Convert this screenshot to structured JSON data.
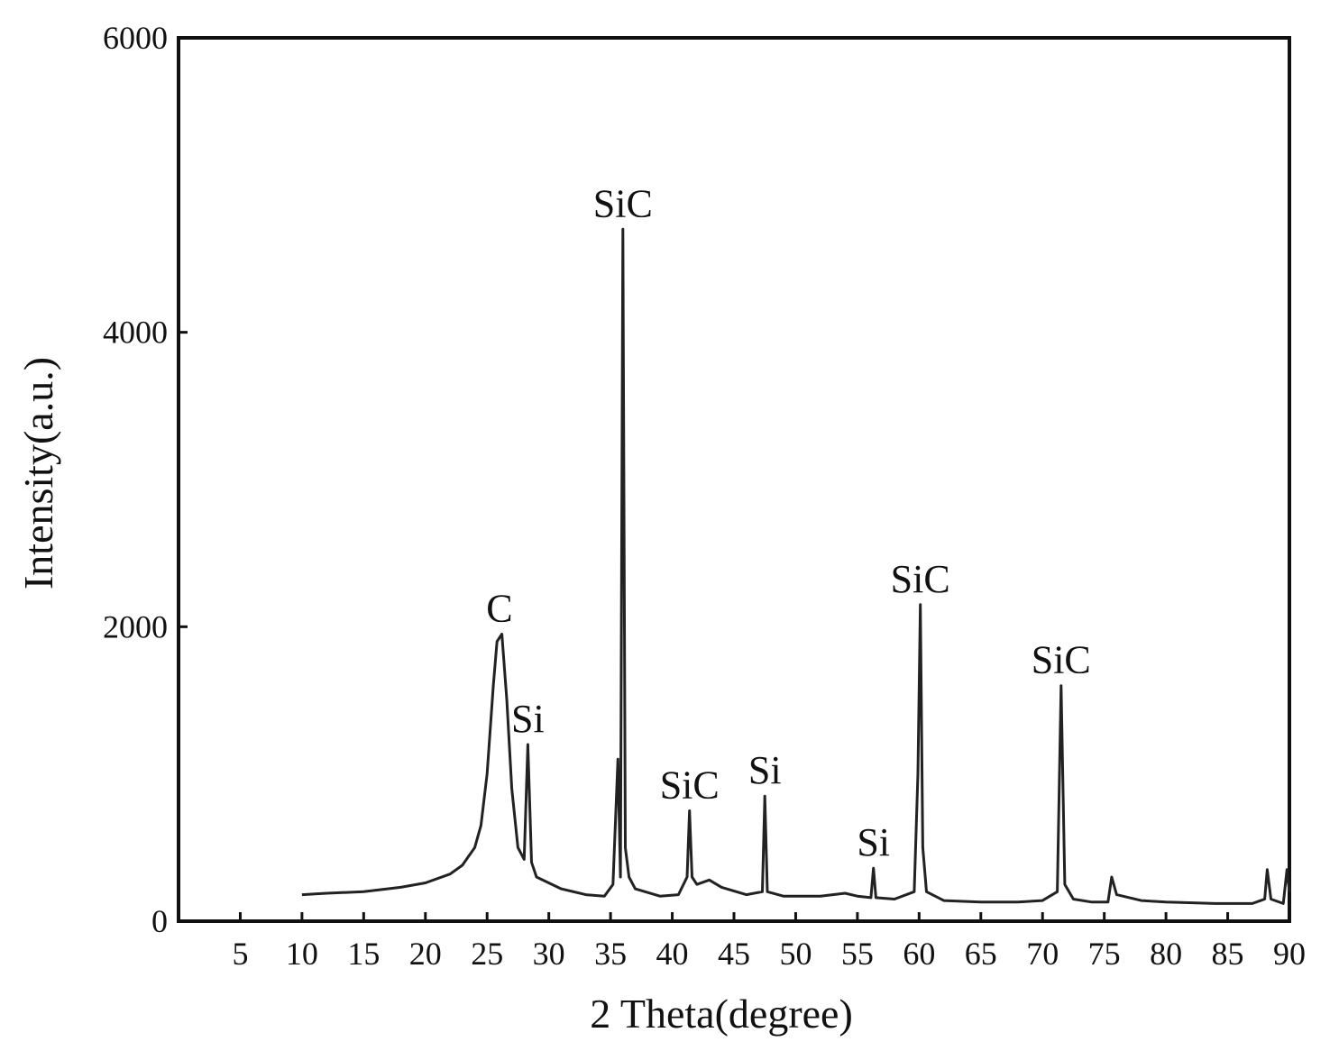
{
  "chart_data": {
    "type": "line",
    "x_label": "2 Theta(degree)",
    "y_label": "Intensity(a.u.)",
    "color": "#222222",
    "xlim": [
      0,
      90
    ],
    "ylim": [
      0,
      6000
    ],
    "xticks": [
      5,
      10,
      15,
      20,
      25,
      30,
      35,
      40,
      45,
      50,
      55,
      60,
      65,
      70,
      75,
      80,
      85,
      90
    ],
    "yticks": [
      0,
      2000,
      4000,
      6000
    ],
    "grid": false,
    "x": [
      10,
      12,
      15,
      18,
      20,
      22,
      23,
      24,
      24.5,
      25,
      25.5,
      25.8,
      26.2,
      26.6,
      27,
      27.5,
      28,
      28.3,
      28.6,
      29,
      31,
      33,
      34.5,
      35.2,
      35.6,
      35.8,
      36,
      36.2,
      36.5,
      37,
      39,
      40.5,
      41.2,
      41.4,
      41.6,
      42,
      43,
      44,
      46,
      47.3,
      47.5,
      47.7,
      49,
      52,
      54,
      55,
      56.1,
      56.3,
      56.5,
      58,
      59.6,
      59.9,
      60.1,
      60.3,
      60.6,
      62,
      65,
      68,
      70,
      71.2,
      71.5,
      71.8,
      72.5,
      74,
      75.3,
      75.6,
      76,
      78,
      80,
      84,
      87,
      88,
      88.2,
      88.5,
      89.5,
      89.8,
      90
    ],
    "values": [
      180,
      190,
      200,
      230,
      260,
      320,
      380,
      500,
      650,
      1000,
      1600,
      1900,
      1950,
      1500,
      900,
      500,
      420,
      1200,
      400,
      300,
      220,
      180,
      170,
      250,
      1100,
      300,
      4700,
      500,
      300,
      220,
      170,
      180,
      300,
      750,
      300,
      250,
      280,
      230,
      180,
      200,
      850,
      200,
      170,
      170,
      190,
      170,
      160,
      360,
      160,
      150,
      200,
      1000,
      2150,
      500,
      200,
      140,
      130,
      130,
      140,
      200,
      1600,
      250,
      150,
      130,
      130,
      300,
      180,
      140,
      130,
      120,
      120,
      150,
      350,
      150,
      120,
      350,
      200
    ],
    "annotations": [
      {
        "text": "C",
        "x": 26
      },
      {
        "text": "Si",
        "x": 28.3
      },
      {
        "text": "SiC",
        "x": 36
      },
      {
        "text": "SiC",
        "x": 41.4
      },
      {
        "text": "Si",
        "x": 47.5
      },
      {
        "text": "Si",
        "x": 56.3
      },
      {
        "text": "SiC",
        "x": 60.1
      },
      {
        "text": "SiC",
        "x": 71.5
      }
    ]
  }
}
